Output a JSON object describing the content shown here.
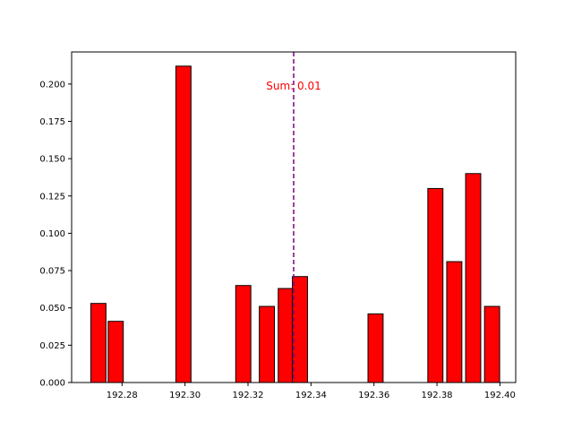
{
  "chart_data": {
    "type": "bar",
    "title": "",
    "xlabel": "",
    "ylabel": "",
    "xlim": [
      192.264,
      192.405
    ],
    "ylim": [
      0,
      0.2215
    ],
    "bar_width": 0.0048,
    "bar_color": "#ff0000",
    "edge_color": "#000000",
    "grid": false,
    "x_ticks": [
      192.28,
      192.3,
      192.32,
      192.34,
      192.36,
      192.38,
      192.4
    ],
    "x_tick_labels": [
      "192.28",
      "192.30",
      "192.32",
      "192.34",
      "192.36",
      "192.38",
      "192.40"
    ],
    "y_ticks": [
      0,
      0.025,
      0.05,
      0.075,
      0.1,
      0.125,
      0.15,
      0.175,
      0.2
    ],
    "y_tick_labels": [
      "0.000",
      "0.025",
      "0.050",
      "0.075",
      "0.100",
      "0.125",
      "0.150",
      "0.175",
      "0.200"
    ],
    "x": [
      192.2725,
      192.278,
      192.2995,
      192.3185,
      192.326,
      192.332,
      192.3365,
      192.3605,
      192.3795,
      192.3855,
      192.3915,
      192.3975
    ],
    "values": [
      0.053,
      0.041,
      0.212,
      0.065,
      0.051,
      0.063,
      0.071,
      0.046,
      0.13,
      0.081,
      0.14,
      0.051
    ],
    "vline": {
      "x": 192.3345,
      "color": "#800080",
      "style": "dashed"
    },
    "annotation": {
      "text": "Sum: 0.01",
      "x": 192.3345,
      "y": 0.2,
      "color": "#ff0000"
    }
  }
}
